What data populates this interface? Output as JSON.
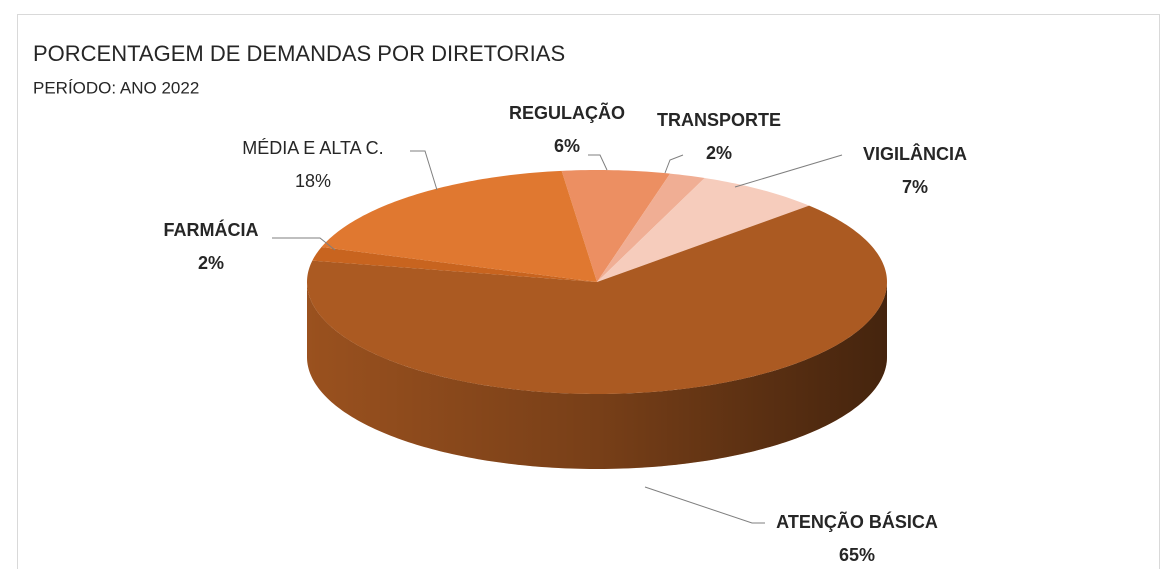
{
  "chart_data": {
    "type": "pie3d",
    "title": "PORCENTAGEM DE DEMANDAS POR DIRETORIAS",
    "subtitle": "PERÍODO: ANO 2022",
    "categories": [
      "REGULAÇÃO",
      "TRANSPORTE",
      "VIGILÂNCIA",
      "ATENÇÃO BÁSICA",
      "FARMÁCIA",
      "MÉDIA E ALTA C."
    ],
    "values": [
      6,
      2,
      7,
      65,
      2,
      18
    ],
    "value_labels": [
      "6%",
      "2%",
      "7%",
      "65%",
      "2%",
      "18%"
    ],
    "colors": [
      "#ec8f62",
      "#f0ae94",
      "#f6ccbc",
      "#ab5a22",
      "#c8641f",
      "#e07830"
    ],
    "label_bold": [
      true,
      true,
      true,
      true,
      true,
      false
    ]
  }
}
